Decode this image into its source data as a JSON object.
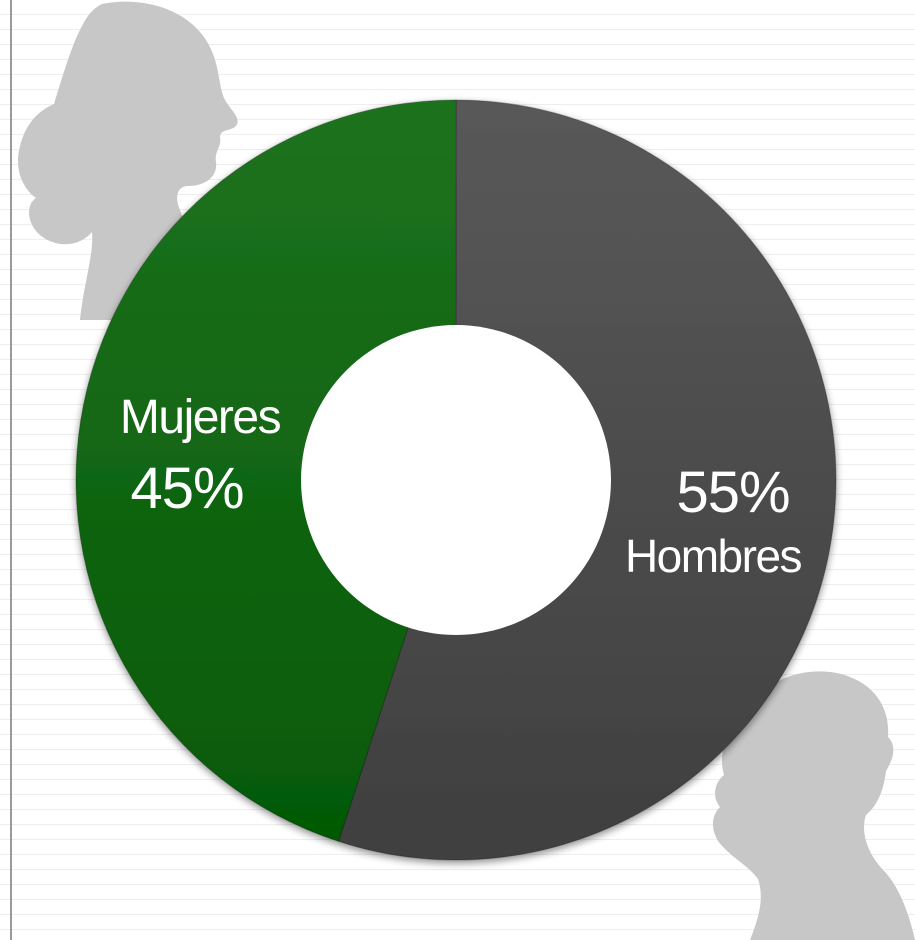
{
  "chart_data": {
    "type": "pie",
    "donut": true,
    "slices": [
      {
        "label": "Hombres",
        "value": 55,
        "display": "55%",
        "color": "#464646"
      },
      {
        "label": "Mujeres",
        "value": 45,
        "display": "45%",
        "color": "#056306"
      }
    ],
    "start_angle": "top",
    "direction": "clockwise"
  },
  "decorations": {
    "top_left": "woman-silhouette-icon",
    "bottom_right": "man-silhouette-icon",
    "silhouette_color": "#c7c7c7"
  }
}
